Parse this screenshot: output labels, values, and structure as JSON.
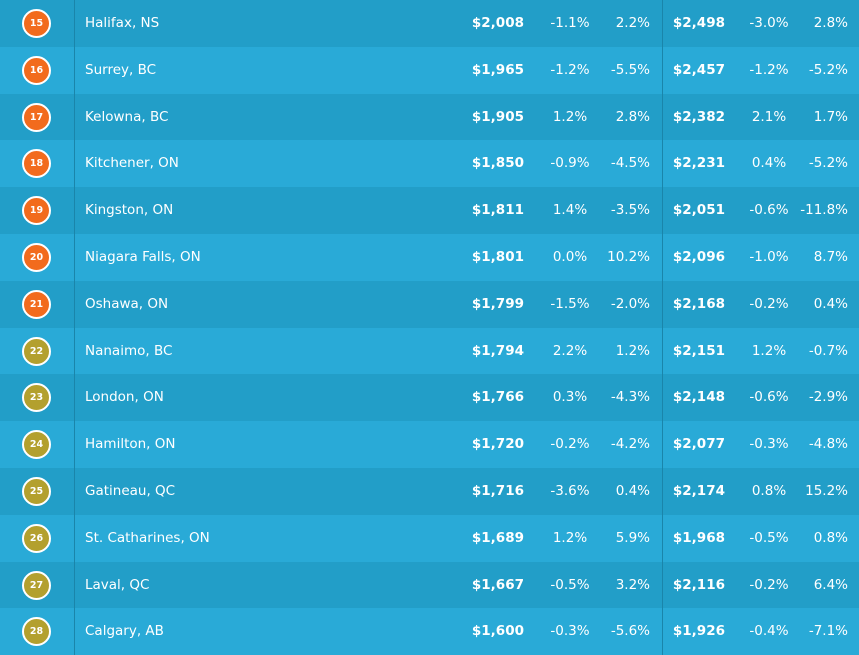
{
  "table": {
    "rows": [
      {
        "rank": "15",
        "city": "Halifax, NS",
        "one_bed": "$2,008",
        "one_bed_mom": "-1.1%",
        "one_bed_yoy": "2.2%",
        "two_bed": "$2,498",
        "two_bed_mom": "-3.0%",
        "two_bed_yoy": "2.8%",
        "badge_color": "#f26b1d"
      },
      {
        "rank": "16",
        "city": "Surrey, BC",
        "one_bed": "$1,965",
        "one_bed_mom": "-1.2%",
        "one_bed_yoy": "-5.5%",
        "two_bed": "$2,457",
        "two_bed_mom": "-1.2%",
        "two_bed_yoy": "-5.2%",
        "badge_color": "#f26b1d"
      },
      {
        "rank": "17",
        "city": "Kelowna, BC",
        "one_bed": "$1,905",
        "one_bed_mom": "1.2%",
        "one_bed_yoy": "2.8%",
        "two_bed": "$2,382",
        "two_bed_mom": "2.1%",
        "two_bed_yoy": "1.7%",
        "badge_color": "#f26b1d"
      },
      {
        "rank": "18",
        "city": "Kitchener, ON",
        "one_bed": "$1,850",
        "one_bed_mom": "-0.9%",
        "one_bed_yoy": "-4.5%",
        "two_bed": "$2,231",
        "two_bed_mom": "0.4%",
        "two_bed_yoy": "-5.2%",
        "badge_color": "#f26b1d"
      },
      {
        "rank": "19",
        "city": "Kingston, ON",
        "one_bed": "$1,811",
        "one_bed_mom": "1.4%",
        "one_bed_yoy": "-3.5%",
        "two_bed": "$2,051",
        "two_bed_mom": "-0.6%",
        "two_bed_yoy": "-11.8%",
        "badge_color": "#f26b1d"
      },
      {
        "rank": "20",
        "city": "Niagara Falls, ON",
        "one_bed": "$1,801",
        "one_bed_mom": "0.0%",
        "one_bed_yoy": "10.2%",
        "two_bed": "$2,096",
        "two_bed_mom": "-1.0%",
        "two_bed_yoy": "8.7%",
        "badge_color": "#f26b1d"
      },
      {
        "rank": "21",
        "city": "Oshawa, ON",
        "one_bed": "$1,799",
        "one_bed_mom": "-1.5%",
        "one_bed_yoy": "-2.0%",
        "two_bed": "$2,168",
        "two_bed_mom": "-0.2%",
        "two_bed_yoy": "0.4%",
        "badge_color": "#f26b1d"
      },
      {
        "rank": "22",
        "city": "Nanaimo, BC",
        "one_bed": "$1,794",
        "one_bed_mom": "2.2%",
        "one_bed_yoy": "1.2%",
        "two_bed": "$2,151",
        "two_bed_mom": "1.2%",
        "two_bed_yoy": "-0.7%",
        "badge_color": "#b3a02e"
      },
      {
        "rank": "23",
        "city": "London, ON",
        "one_bed": "$1,766",
        "one_bed_mom": "0.3%",
        "one_bed_yoy": "-4.3%",
        "two_bed": "$2,148",
        "two_bed_mom": "-0.6%",
        "two_bed_yoy": "-2.9%",
        "badge_color": "#b3a02e"
      },
      {
        "rank": "24",
        "city": "Hamilton, ON",
        "one_bed": "$1,720",
        "one_bed_mom": "-0.2%",
        "one_bed_yoy": "-4.2%",
        "two_bed": "$2,077",
        "two_bed_mom": "-0.3%",
        "two_bed_yoy": "-4.8%",
        "badge_color": "#b3a02e"
      },
      {
        "rank": "25",
        "city": "Gatineau, QC",
        "one_bed": "$1,716",
        "one_bed_mom": "-3.6%",
        "one_bed_yoy": "0.4%",
        "two_bed": "$2,174",
        "two_bed_mom": "0.8%",
        "two_bed_yoy": "15.2%",
        "badge_color": "#b3a02e"
      },
      {
        "rank": "26",
        "city": "St. Catharines, ON",
        "one_bed": "$1,689",
        "one_bed_mom": "1.2%",
        "one_bed_yoy": "5.9%",
        "two_bed": "$1,968",
        "two_bed_mom": "-0.5%",
        "two_bed_yoy": "0.8%",
        "badge_color": "#b3a02e"
      },
      {
        "rank": "27",
        "city": "Laval, QC",
        "one_bed": "$1,667",
        "one_bed_mom": "-0.5%",
        "one_bed_yoy": "3.2%",
        "two_bed": "$2,116",
        "two_bed_mom": "-0.2%",
        "two_bed_yoy": "6.4%",
        "badge_color": "#b3a02e"
      },
      {
        "rank": "28",
        "city": "Calgary, AB",
        "one_bed": "$1,600",
        "one_bed_mom": "-0.3%",
        "one_bed_yoy": "-5.6%",
        "two_bed": "$1,926",
        "two_bed_mom": "-0.4%",
        "two_bed_yoy": "-7.1%",
        "badge_color": "#b3a02e"
      }
    ]
  }
}
